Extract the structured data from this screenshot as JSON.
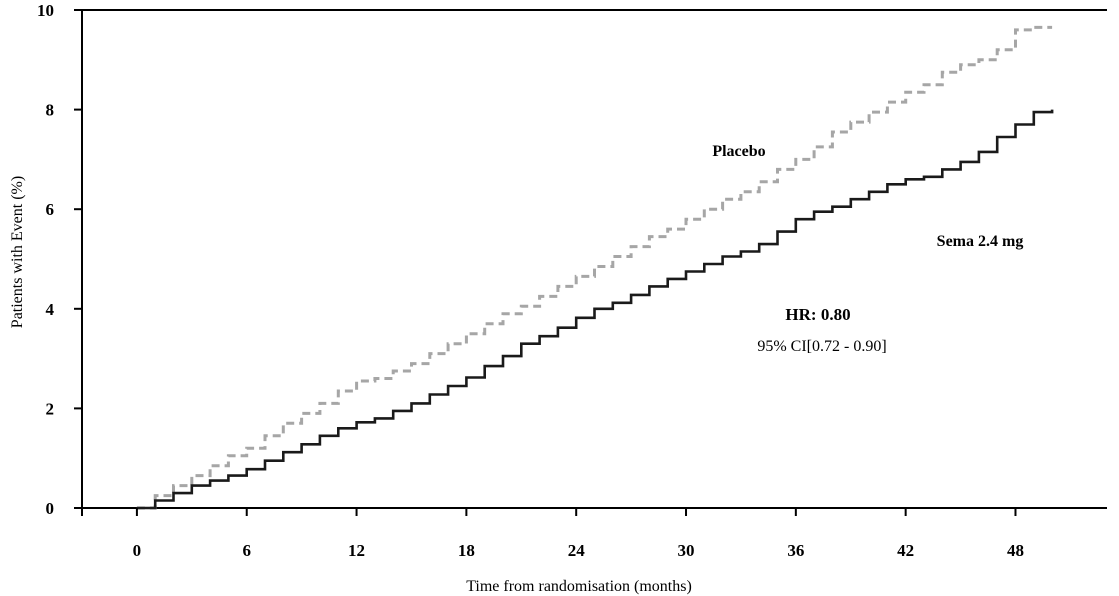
{
  "chart_data": {
    "type": "line",
    "title": "",
    "xlabel": "Time from randomisation (months)",
    "ylabel": "Patients with Event (%)",
    "xlim": [
      -3,
      53
    ],
    "ylim": [
      0,
      10
    ],
    "x_ticks": [
      0,
      6,
      12,
      18,
      24,
      30,
      36,
      42,
      48
    ],
    "y_ticks": [
      0,
      2,
      4,
      6,
      8,
      10
    ],
    "x_tick_labels": [
      "0",
      "6",
      "12",
      "18",
      "24",
      "30",
      "36",
      "42",
      "48"
    ],
    "y_tick_labels": [
      "0",
      "2",
      "4",
      "6",
      "8",
      "10"
    ],
    "grid": false,
    "series": [
      {
        "name": "Placebo",
        "color": "#a6a6a6",
        "style": "dashed",
        "x": [
          0,
          1,
          2,
          3,
          4,
          5,
          6,
          7,
          8,
          9,
          10,
          11,
          12,
          13,
          14,
          15,
          16,
          17,
          18,
          19,
          20,
          21,
          22,
          23,
          24,
          25,
          26,
          27,
          28,
          29,
          30,
          31,
          32,
          33,
          34,
          35,
          36,
          37,
          38,
          39,
          40,
          41,
          42,
          43,
          44,
          45,
          46,
          47,
          48,
          49,
          50
        ],
        "y": [
          0,
          0.25,
          0.45,
          0.65,
          0.85,
          1.05,
          1.2,
          1.45,
          1.7,
          1.9,
          2.1,
          2.35,
          2.55,
          2.6,
          2.75,
          2.9,
          3.1,
          3.3,
          3.5,
          3.7,
          3.9,
          4.05,
          4.25,
          4.45,
          4.65,
          4.85,
          5.05,
          5.25,
          5.45,
          5.6,
          5.8,
          6.0,
          6.2,
          6.35,
          6.55,
          6.8,
          7.0,
          7.25,
          7.55,
          7.75,
          7.95,
          8.15,
          8.35,
          8.5,
          8.75,
          8.9,
          9.0,
          9.2,
          9.6,
          9.65,
          9.65
        ]
      },
      {
        "name": "Sema 2.4 mg",
        "color": "#1a1a1a",
        "style": "solid",
        "x": [
          0,
          1,
          2,
          3,
          4,
          5,
          6,
          7,
          8,
          9,
          10,
          11,
          12,
          13,
          14,
          15,
          16,
          17,
          18,
          19,
          20,
          21,
          22,
          23,
          24,
          25,
          26,
          27,
          28,
          29,
          30,
          31,
          32,
          33,
          34,
          35,
          36,
          37,
          38,
          39,
          40,
          41,
          42,
          43,
          44,
          45,
          46,
          47,
          48,
          49,
          50
        ],
        "y": [
          0,
          0.15,
          0.3,
          0.45,
          0.55,
          0.65,
          0.78,
          0.95,
          1.12,
          1.28,
          1.45,
          1.6,
          1.72,
          1.8,
          1.95,
          2.1,
          2.28,
          2.45,
          2.62,
          2.85,
          3.05,
          3.3,
          3.45,
          3.62,
          3.82,
          4.0,
          4.12,
          4.28,
          4.45,
          4.6,
          4.75,
          4.9,
          5.05,
          5.15,
          5.3,
          5.55,
          5.8,
          5.95,
          6.05,
          6.2,
          6.35,
          6.5,
          6.6,
          6.65,
          6.8,
          6.95,
          7.15,
          7.45,
          7.7,
          7.95,
          8.0
        ]
      }
    ],
    "annotations": {
      "placebo": "Placebo",
      "sema": "Sema 2.4 mg",
      "hr": "HR: 0.80",
      "ci": "95% CI[0.72 - 0.90]"
    }
  }
}
